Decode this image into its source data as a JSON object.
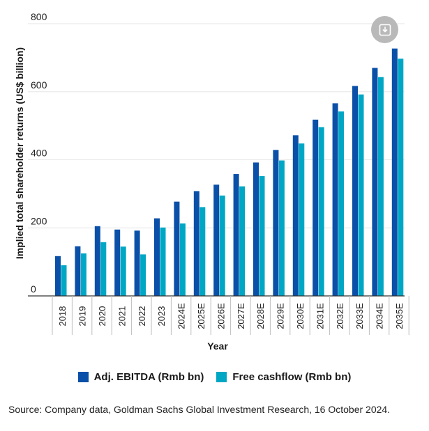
{
  "chart_data": {
    "type": "bar",
    "title": "",
    "xlabel": "Year",
    "ylabel": "Implied total shareholder returns (US$ billion)",
    "ylim": [
      0,
      800
    ],
    "yticks": [
      0,
      200,
      400,
      600,
      800
    ],
    "grid": true,
    "legend_position": "bottom",
    "categories": [
      "2018",
      "2019",
      "2020",
      "2021",
      "2022",
      "2023",
      "2024E",
      "2025E",
      "2026E",
      "2027E",
      "2028E",
      "2029E",
      "2030E",
      "2031E",
      "2032E",
      "2033E",
      "2034E",
      "2035E"
    ],
    "series": [
      {
        "name": "Adj. EBITDA (Rmb bn)",
        "color": "#0a50a8",
        "values": [
          117,
          146,
          205,
          195,
          192,
          228,
          277,
          308,
          327,
          358,
          392,
          429,
          472,
          518,
          566,
          617,
          670,
          727
        ]
      },
      {
        "name": "Free cashflow (Rmb bn)",
        "color": "#00a7c4",
        "values": [
          90,
          125,
          158,
          145,
          122,
          201,
          213,
          261,
          295,
          322,
          352,
          398,
          448,
          496,
          542,
          592,
          643,
          697
        ]
      }
    ]
  },
  "download_icon": "download-icon",
  "source_text": "Source: Company data, Goldman Sachs Global Investment Research, 16 October 2024."
}
